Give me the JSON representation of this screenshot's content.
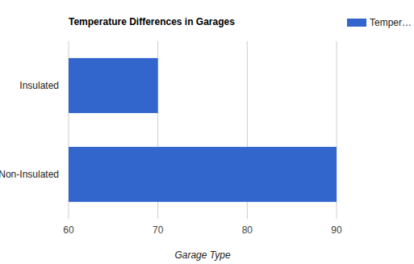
{
  "chart_data": {
    "type": "bar",
    "title": "Temperature Differences in Garages",
    "orientation": "horizontal",
    "categories": [
      "Insulated",
      "Non-Insulated"
    ],
    "series": [
      {
        "name": "Temper…",
        "color": "#3366cc",
        "values": [
          70,
          90
        ]
      }
    ],
    "xlabel": "Garage Type",
    "xlim": [
      60,
      90
    ],
    "xticks": [
      60,
      70,
      80,
      90
    ],
    "grid": true,
    "legend": "right"
  }
}
